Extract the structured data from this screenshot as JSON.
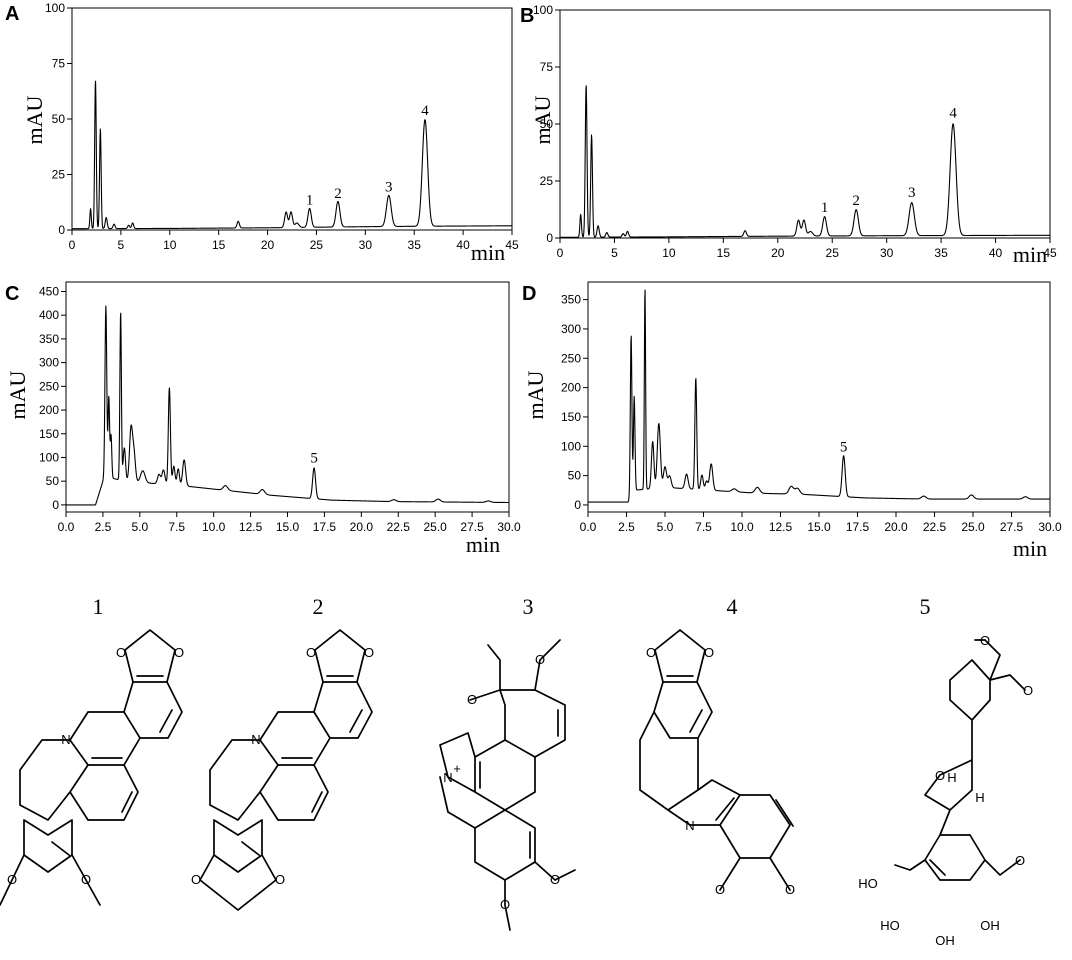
{
  "chart_data": [
    {
      "panel": "A",
      "type": "line",
      "ylabel": "mAU",
      "xlabel": "min",
      "xlim": [
        0,
        45
      ],
      "ylim": [
        0,
        100
      ],
      "xticks": [
        0,
        5,
        10,
        15,
        20,
        25,
        30,
        35,
        40,
        45
      ],
      "xtick_labels": [
        "0",
        "5",
        "10",
        "15",
        "20",
        "25",
        "30",
        "35",
        "40",
        "45"
      ],
      "yticks": [
        0,
        25,
        50,
        75,
        100
      ],
      "ytick_labels": [
        "0",
        "25",
        "50",
        "75",
        "100"
      ],
      "baseline": [
        [
          0,
          0.6
        ],
        [
          10,
          0.7
        ],
        [
          20,
          1.0
        ],
        [
          30,
          1.5
        ],
        [
          36,
          1.7
        ],
        [
          45,
          1.9
        ]
      ],
      "peaks": [
        [
          1.9,
          9,
          0.07
        ],
        [
          2.4,
          67,
          0.08
        ],
        [
          2.9,
          45,
          0.08
        ],
        [
          3.5,
          5,
          0.1
        ],
        [
          4.3,
          2,
          0.1
        ],
        [
          5.8,
          1.5,
          0.1
        ],
        [
          6.2,
          2.5,
          0.1
        ],
        [
          17.0,
          3,
          0.12
        ],
        [
          21.9,
          7,
          0.15
        ],
        [
          22.4,
          7,
          0.15
        ],
        [
          23.0,
          2,
          0.2
        ],
        [
          24.3,
          8.5,
          0.17
        ],
        [
          27.2,
          11.5,
          0.2
        ],
        [
          32.4,
          14,
          0.24
        ],
        [
          36.1,
          48,
          0.27
        ]
      ],
      "annotations": [
        {
          "text": "1",
          "x": 24.3,
          "y": 10.5
        },
        {
          "text": "2",
          "x": 27.2,
          "y": 13.5
        },
        {
          "text": "3",
          "x": 32.4,
          "y": 16.5
        },
        {
          "text": "4",
          "x": 36.1,
          "y": 51
        }
      ]
    },
    {
      "panel": "B",
      "type": "line",
      "ylabel": "mAU",
      "xlabel": "min",
      "xlim": [
        0,
        45
      ],
      "ylim": [
        0,
        100
      ],
      "xticks": [
        0,
        5,
        10,
        15,
        20,
        25,
        30,
        35,
        40,
        45
      ],
      "xtick_labels": [
        "0",
        "5",
        "10",
        "15",
        "20",
        "25",
        "30",
        "35",
        "40",
        "45"
      ],
      "yticks": [
        0,
        25,
        50,
        75,
        100
      ],
      "ytick_labels": [
        "0",
        "25",
        "50",
        "75",
        "100"
      ],
      "baseline": [
        [
          0,
          0.3
        ],
        [
          10,
          0.5
        ],
        [
          20,
          0.8
        ],
        [
          30,
          1.0
        ],
        [
          45,
          1.2
        ]
      ],
      "peaks": [
        [
          1.9,
          10,
          0.07
        ],
        [
          2.4,
          67,
          0.08
        ],
        [
          2.9,
          45,
          0.08
        ],
        [
          3.5,
          5,
          0.1
        ],
        [
          4.3,
          2,
          0.1
        ],
        [
          5.8,
          1.5,
          0.1
        ],
        [
          6.2,
          2.5,
          0.1
        ],
        [
          17.0,
          2.5,
          0.12
        ],
        [
          21.9,
          7,
          0.15
        ],
        [
          22.4,
          7,
          0.15
        ],
        [
          23.0,
          2,
          0.2
        ],
        [
          24.3,
          8.5,
          0.17
        ],
        [
          27.2,
          11.5,
          0.2
        ],
        [
          32.3,
          14.5,
          0.24
        ],
        [
          36.1,
          49,
          0.27
        ]
      ],
      "annotations": [
        {
          "text": "1",
          "x": 24.3,
          "y": 10.5
        },
        {
          "text": "2",
          "x": 27.2,
          "y": 13.5
        },
        {
          "text": "3",
          "x": 32.3,
          "y": 17
        },
        {
          "text": "4",
          "x": 36.1,
          "y": 52
        }
      ]
    },
    {
      "panel": "C",
      "type": "line",
      "ylabel": "mAU",
      "xlabel": "min",
      "xlim": [
        0,
        30
      ],
      "ylim": [
        -15,
        470
      ],
      "xticks": [
        0,
        2.5,
        5,
        7.5,
        10,
        12.5,
        15,
        17.5,
        20,
        22.5,
        25,
        27.5,
        30
      ],
      "xtick_labels": [
        "0.0",
        "2.5",
        "5.0",
        "7.5",
        "10.0",
        "12.5",
        "15.0",
        "17.5",
        "20.0",
        "22.5",
        "25.0",
        "27.5",
        "30.0"
      ],
      "yticks": [
        0,
        50,
        100,
        150,
        200,
        250,
        300,
        350,
        400,
        450
      ],
      "ytick_labels": [
        "0",
        "50",
        "100",
        "150",
        "200",
        "250",
        "300",
        "350",
        "400",
        "450"
      ],
      "baseline": [
        [
          0,
          0
        ],
        [
          2,
          0
        ],
        [
          2.6,
          60
        ],
        [
          4,
          50
        ],
        [
          6,
          45
        ],
        [
          8,
          40
        ],
        [
          11,
          30
        ],
        [
          14,
          20
        ],
        [
          18,
          10
        ],
        [
          22,
          7
        ],
        [
          30,
          5
        ]
      ],
      "peaks": [
        [
          2.7,
          360,
          0.06
        ],
        [
          2.9,
          170,
          0.05
        ],
        [
          3.05,
          90,
          0.05
        ],
        [
          3.7,
          355,
          0.05
        ],
        [
          3.95,
          70,
          0.08
        ],
        [
          4.4,
          110,
          0.1
        ],
        [
          4.6,
          60,
          0.1
        ],
        [
          5.2,
          25,
          0.15
        ],
        [
          6.3,
          20,
          0.1
        ],
        [
          6.6,
          30,
          0.1
        ],
        [
          7.0,
          205,
          0.07
        ],
        [
          7.3,
          40,
          0.08
        ],
        [
          7.6,
          35,
          0.08
        ],
        [
          8.0,
          55,
          0.1
        ],
        [
          10.8,
          10,
          0.15
        ],
        [
          13.3,
          10,
          0.15
        ],
        [
          16.8,
          65,
          0.1
        ],
        [
          22.2,
          4,
          0.15
        ],
        [
          25.2,
          6,
          0.15
        ],
        [
          28.6,
          3,
          0.15
        ]
      ],
      "annotations": [
        {
          "text": "5",
          "x": 16.8,
          "y": 85
        }
      ]
    },
    {
      "panel": "D",
      "type": "line",
      "ylabel": "mAU",
      "xlabel": "min",
      "xlim": [
        0,
        30
      ],
      "ylim": [
        -12,
        380
      ],
      "xticks": [
        0,
        2.5,
        5,
        7.5,
        10,
        12.5,
        15,
        17.5,
        20,
        22.5,
        25,
        27.5,
        30
      ],
      "xtick_labels": [
        "0.0",
        "2.5",
        "5.0",
        "7.5",
        "10.0",
        "12.5",
        "15.0",
        "17.5",
        "20.0",
        "22.5",
        "25.0",
        "27.5",
        "30.0"
      ],
      "yticks": [
        0,
        50,
        100,
        150,
        200,
        250,
        300,
        350
      ],
      "ytick_labels": [
        "0",
        "50",
        "100",
        "150",
        "200",
        "250",
        "300",
        "350"
      ],
      "baseline": [
        [
          0,
          5
        ],
        [
          2.6,
          5
        ],
        [
          3,
          25
        ],
        [
          5,
          30
        ],
        [
          8,
          25
        ],
        [
          11,
          20
        ],
        [
          14,
          18
        ],
        [
          18,
          12
        ],
        [
          22,
          10
        ],
        [
          30,
          10
        ]
      ],
      "peaks": [
        [
          2.8,
          275,
          0.05
        ],
        [
          3.0,
          160,
          0.05
        ],
        [
          3.7,
          345,
          0.04
        ],
        [
          4.2,
          80,
          0.08
        ],
        [
          4.6,
          110,
          0.1
        ],
        [
          5.0,
          35,
          0.1
        ],
        [
          5.3,
          20,
          0.1
        ],
        [
          6.4,
          25,
          0.1
        ],
        [
          7.0,
          190,
          0.06
        ],
        [
          7.4,
          25,
          0.08
        ],
        [
          7.7,
          15,
          0.08
        ],
        [
          8.0,
          45,
          0.1
        ],
        [
          9.5,
          5,
          0.15
        ],
        [
          11.0,
          10,
          0.15
        ],
        [
          13.2,
          13,
          0.15
        ],
        [
          13.6,
          10,
          0.15
        ],
        [
          16.6,
          70,
          0.1
        ],
        [
          21.8,
          5,
          0.15
        ],
        [
          24.9,
          7,
          0.15
        ],
        [
          28.4,
          4,
          0.15
        ]
      ],
      "annotations": [
        {
          "text": "5",
          "x": 16.6,
          "y": 88
        }
      ]
    }
  ],
  "compound_numbers": [
    "1",
    "2",
    "3",
    "4",
    "5"
  ],
  "atoms": {
    "N": "N",
    "N_plus": "N",
    "plus": "+",
    "H": "H",
    "HO": "HO",
    "OH": "OH",
    "O": "O"
  }
}
